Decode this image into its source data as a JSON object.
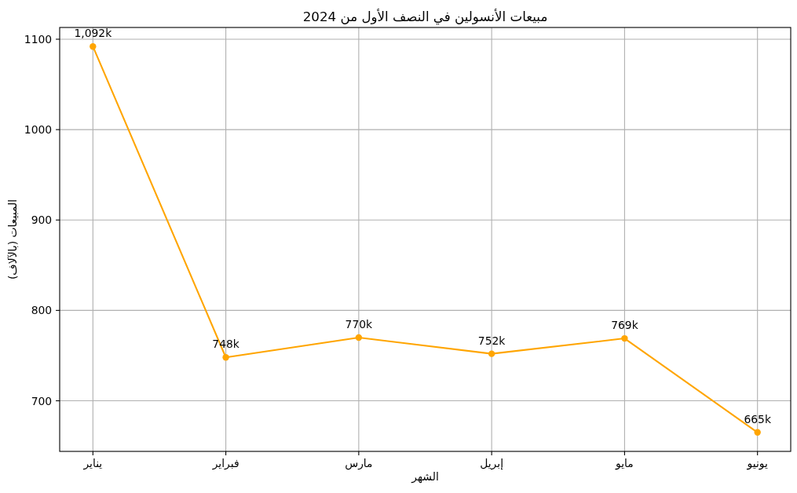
{
  "chart_data": {
    "type": "line",
    "title": "مبيعات الأنسولين في النصف الأول من 2024",
    "xlabel": "الشهر",
    "ylabel": "المبيعات (بالآلاف)",
    "categories": [
      "يناير",
      "فبراير",
      "مارس",
      "إبريل",
      "مايو",
      "يونيو"
    ],
    "series": [
      {
        "color": "#ffa500",
        "values": [
          1092,
          748,
          770,
          752,
          769,
          665
        ],
        "value_labels": [
          "1,092k",
          "748k",
          "770k",
          "752k",
          "769k",
          "665k"
        ]
      }
    ],
    "ylim": [
      644,
      1113
    ],
    "yticks": [
      700,
      800,
      900,
      1000,
      1100
    ],
    "grid": true,
    "marker": "circle",
    "line_style": "solid"
  }
}
